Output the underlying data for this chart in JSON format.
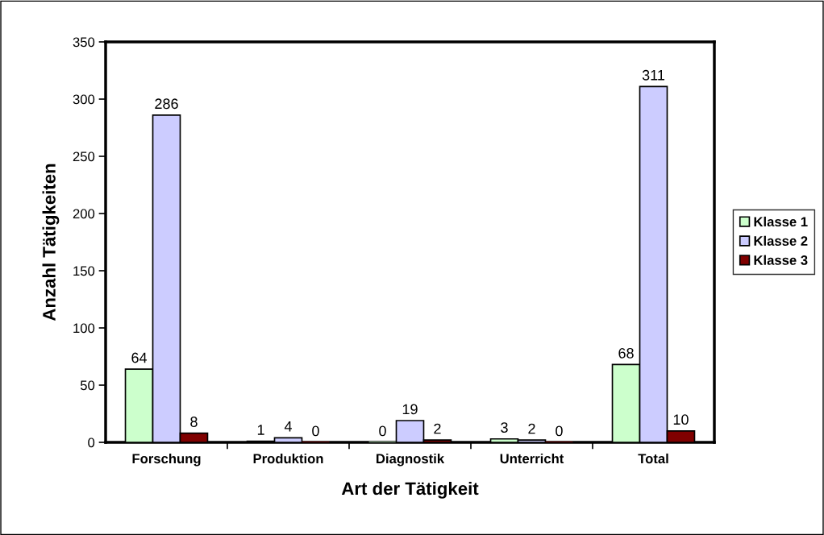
{
  "chart_data": {
    "type": "bar",
    "xlabel": "Art der Tätigkeit",
    "ylabel": "Anzahl Tätigkeiten",
    "categories": [
      "Forschung",
      "Produktion",
      "Diagnostik",
      "Unterricht",
      "Total"
    ],
    "series": [
      {
        "name": "Klasse 1",
        "color": "#ccffcc",
        "values": [
          64,
          1,
          0,
          3,
          68
        ]
      },
      {
        "name": "Klasse 2",
        "color": "#ccccff",
        "values": [
          286,
          4,
          19,
          2,
          311
        ]
      },
      {
        "name": "Klasse 3",
        "color": "#800000",
        "values": [
          8,
          0,
          2,
          0,
          10
        ]
      }
    ],
    "ylim": [
      0,
      350
    ],
    "yticks": [
      0,
      50,
      100,
      150,
      200,
      250,
      300,
      350
    ],
    "grid": false,
    "legend": "right",
    "data_labels": true
  }
}
